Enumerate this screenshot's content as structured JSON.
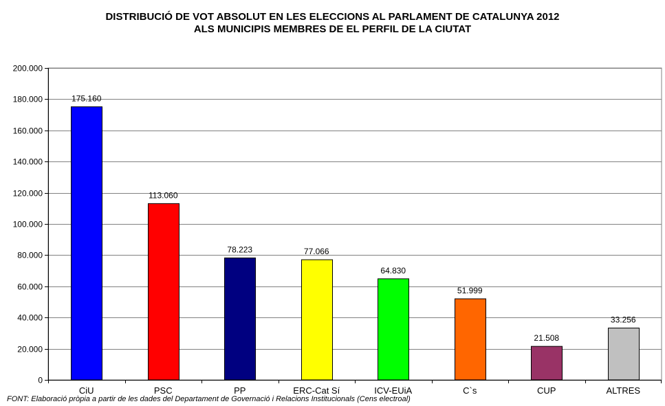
{
  "chart_data": {
    "type": "bar",
    "title": "DISTRIBUCIÓ DE VOT ABSOLUT EN LES ELECCIONS AL PARLAMENT DE CATALUNYA 2012",
    "subtitle": "ALS MUNICIPIS MEMBRES DE EL PERFIL DE LA CIUTAT",
    "categories": [
      "CiU",
      "PSC",
      "PP",
      "ERC-Cat Sí",
      "ICV-EUiA",
      "C`s",
      "CUP",
      "ALTRES"
    ],
    "values": [
      175160,
      113060,
      78223,
      77066,
      64830,
      51999,
      21508,
      33256
    ],
    "data_labels": [
      "175.160",
      "113.060",
      "78.223",
      "77.066",
      "64.830",
      "51.999",
      "21.508",
      "33.256"
    ],
    "colors": [
      "#0000FF",
      "#FF0000",
      "#000080",
      "#FFFF00",
      "#00FF00",
      "#FF6600",
      "#993366",
      "#C0C0C0"
    ],
    "ylim": [
      0,
      200000
    ],
    "yticks": [
      0,
      20000,
      40000,
      60000,
      80000,
      100000,
      120000,
      140000,
      160000,
      180000,
      200000
    ],
    "ytick_labels": [
      "0",
      "20.000",
      "40.000",
      "60.000",
      "80.000",
      "100.000",
      "120.000",
      "140.000",
      "160.000",
      "180.000",
      "200.000"
    ],
    "grid": true,
    "legend": "none",
    "xlabel": "",
    "ylabel": ""
  },
  "source_note": "FONT: Elaboració pròpia a partir de les dades del Departament de Governació i Relacions Institucionals (Cens electroal)"
}
